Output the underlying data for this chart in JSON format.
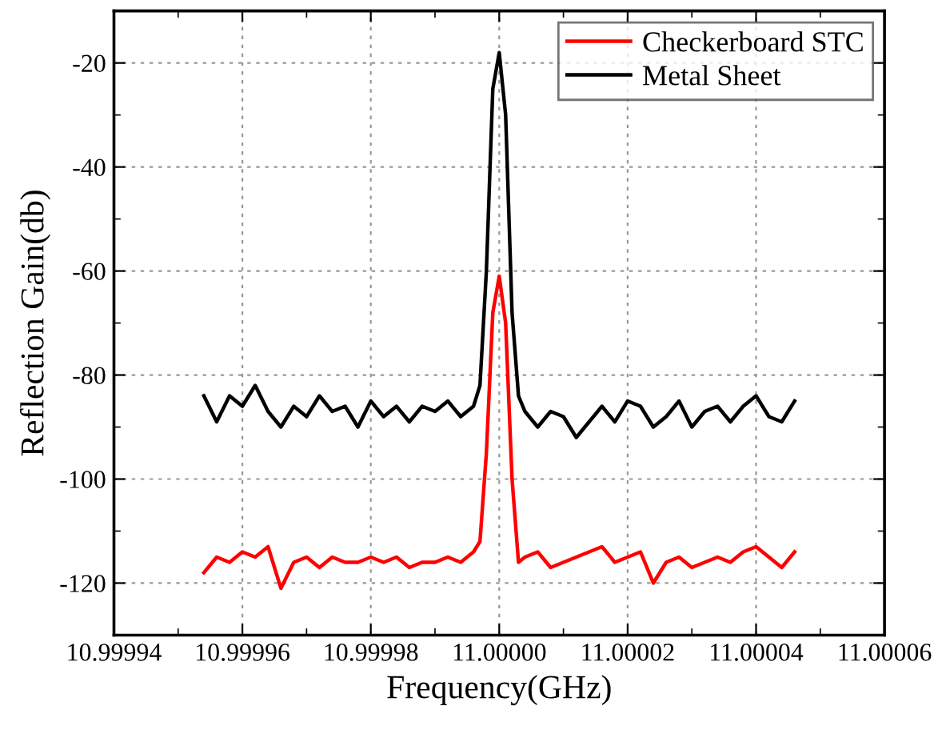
{
  "chart_data": {
    "type": "line",
    "xlabel": "Frequency(GHz)",
    "ylabel": "Reflection Gain(db)",
    "xlim": [
      10.99994,
      11.00006
    ],
    "ylim": [
      -130,
      -10
    ],
    "xticks": [
      {
        "value": 10.99994,
        "label": "10.99994"
      },
      {
        "value": 10.99996,
        "label": "10.99996"
      },
      {
        "value": 10.99998,
        "label": "10.99998"
      },
      {
        "value": 11.0,
        "label": "11.00000"
      },
      {
        "value": 11.00002,
        "label": "11.00002"
      },
      {
        "value": 11.00004,
        "label": "11.00004"
      },
      {
        "value": 11.00006,
        "label": "11.00006"
      }
    ],
    "yticks": [
      -120,
      -100,
      -80,
      -60,
      -40,
      -20
    ],
    "grid": true,
    "legend": "top right",
    "marker": "none",
    "line_style": "solid",
    "series": [
      {
        "name": "Checkerboard STC",
        "color": "#ff0000",
        "x": [
          10.999954,
          10.999956,
          10.999958,
          10.99996,
          10.999962,
          10.999964,
          10.999966,
          10.999968,
          10.99997,
          10.999972,
          10.999974,
          10.999976,
          10.999978,
          10.99998,
          10.999982,
          10.999984,
          10.999986,
          10.999988,
          10.99999,
          10.999992,
          10.999994,
          10.999996,
          10.999997,
          10.999998,
          10.999999,
          11.0,
          11.000001,
          11.000002,
          11.000003,
          11.000004,
          11.000006,
          11.000008,
          11.00001,
          11.000012,
          11.000014,
          11.000016,
          11.000018,
          11.00002,
          11.000022,
          11.000024,
          11.000026,
          11.000028,
          11.00003,
          11.000032,
          11.000034,
          11.000036,
          11.000038,
          11.00004,
          11.000042,
          11.000044,
          11.000046
        ],
        "values": [
          -118,
          -115,
          -116,
          -114,
          -115,
          -113,
          -121,
          -116,
          -115,
          -117,
          -115,
          -116,
          -116,
          -115,
          -116,
          -115,
          -117,
          -116,
          -116,
          -115,
          -116,
          -114,
          -112,
          -95,
          -68,
          -61,
          -70,
          -100,
          -116,
          -115,
          -114,
          -117,
          -116,
          -115,
          -114,
          -113,
          -116,
          -115,
          -114,
          -120,
          -116,
          -115,
          -117,
          -116,
          -115,
          -116,
          -114,
          -113,
          -115,
          -117,
          -114
        ]
      },
      {
        "name": "Metal Sheet",
        "color": "#000000",
        "x": [
          10.999954,
          10.999956,
          10.999958,
          10.99996,
          10.999962,
          10.999964,
          10.999966,
          10.999968,
          10.99997,
          10.999972,
          10.999974,
          10.999976,
          10.999978,
          10.99998,
          10.999982,
          10.999984,
          10.999986,
          10.999988,
          10.99999,
          10.999992,
          10.999994,
          10.999996,
          10.999997,
          10.999998,
          10.999999,
          11.0,
          11.000001,
          11.000002,
          11.000003,
          11.000004,
          11.000006,
          11.000008,
          11.00001,
          11.000012,
          11.000014,
          11.000016,
          11.000018,
          11.00002,
          11.000022,
          11.000024,
          11.000026,
          11.000028,
          11.00003,
          11.000032,
          11.000034,
          11.000036,
          11.000038,
          11.00004,
          11.000042,
          11.000044,
          11.000046
        ],
        "values": [
          -84,
          -89,
          -84,
          -86,
          -82,
          -87,
          -90,
          -86,
          -88,
          -84,
          -87,
          -86,
          -90,
          -85,
          -88,
          -86,
          -89,
          -86,
          -87,
          -85,
          -88,
          -86,
          -82,
          -60,
          -25,
          -18,
          -30,
          -68,
          -84,
          -87,
          -90,
          -87,
          -88,
          -92,
          -89,
          -86,
          -89,
          -85,
          -86,
          -90,
          -88,
          -85,
          -90,
          -87,
          -86,
          -89,
          -86,
          -84,
          -88,
          -89,
          -85
        ]
      }
    ]
  }
}
